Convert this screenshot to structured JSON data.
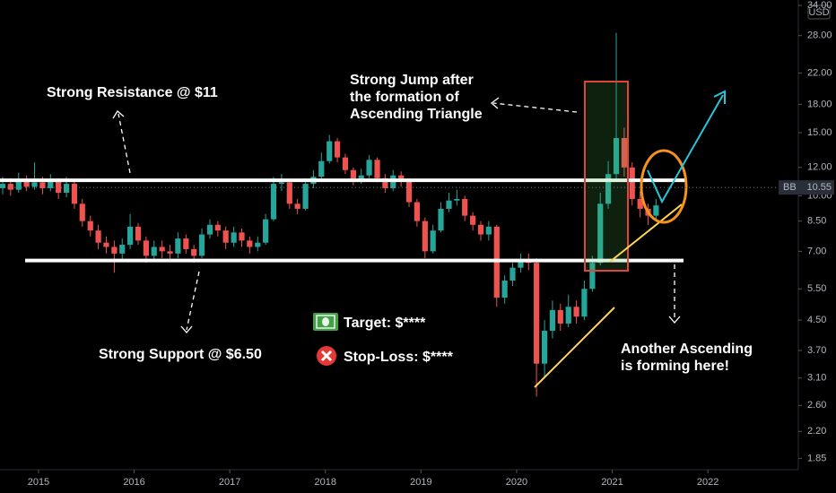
{
  "chart_data": {
    "type": "candlestick",
    "x": [
      2014.625,
      2014.708,
      2014.792,
      2014.875,
      2014.958,
      2015.042,
      2015.125,
      2015.208,
      2015.292,
      2015.375,
      2015.458,
      2015.542,
      2015.625,
      2015.708,
      2015.792,
      2015.875,
      2015.958,
      2016.042,
      2016.125,
      2016.208,
      2016.292,
      2016.375,
      2016.458,
      2016.542,
      2016.625,
      2016.708,
      2016.792,
      2016.875,
      2016.958,
      2017.042,
      2017.125,
      2017.208,
      2017.292,
      2017.375,
      2017.458,
      2017.542,
      2017.625,
      2017.708,
      2017.792,
      2017.875,
      2017.958,
      2018.042,
      2018.125,
      2018.208,
      2018.292,
      2018.375,
      2018.458,
      2018.542,
      2018.625,
      2018.708,
      2018.792,
      2018.875,
      2018.958,
      2019.042,
      2019.125,
      2019.208,
      2019.292,
      2019.375,
      2019.458,
      2019.542,
      2019.625,
      2019.708,
      2019.792,
      2019.875,
      2019.958,
      2020.042,
      2020.125,
      2020.208,
      2020.292,
      2020.375,
      2020.458,
      2020.542,
      2020.625,
      2020.708,
      2020.792,
      2020.875,
      2020.958,
      2021.042,
      2021.125,
      2021.208,
      2021.292,
      2021.375,
      2021.458
    ],
    "open": [
      10.5,
      10.8,
      10.4,
      11.0,
      10.6,
      10.9,
      10.5,
      11.0,
      10.2,
      10.8,
      9.5,
      8.5,
      8.0,
      7.4,
      7.2,
      6.9,
      7.3,
      8.2,
      7.5,
      6.8,
      7.2,
      7.0,
      6.9,
      7.6,
      7.1,
      6.8,
      7.8,
      8.3,
      8.0,
      7.4,
      7.9,
      7.5,
      7.2,
      7.4,
      8.6,
      10.8,
      10.9,
      9.5,
      9.2,
      10.8,
      11.3,
      12.5,
      14.2,
      12.8,
      11.8,
      11.0,
      11.4,
      12.6,
      11.2,
      10.5,
      11.4,
      11.0,
      9.6,
      8.5,
      7.0,
      8.0,
      9.2,
      9.7,
      9.8,
      8.8,
      8.3,
      7.8,
      8.2,
      5.2,
      5.8,
      6.3,
      6.6,
      6.5,
      3.4,
      4.2,
      4.8,
      4.4,
      4.9,
      4.6,
      5.5,
      6.5,
      9.5,
      11.5,
      14.5,
      12.0,
      9.8,
      9.2,
      8.8
    ],
    "high": [
      11.3,
      11.2,
      11.6,
      11.4,
      12.4,
      11.3,
      11.5,
      11.2,
      11.3,
      11.0,
      9.8,
      8.8,
      8.3,
      7.7,
      7.5,
      7.6,
      8.9,
      8.4,
      7.7,
      7.5,
      7.5,
      7.3,
      7.9,
      7.8,
      7.3,
      8.1,
      8.6,
      8.5,
      8.2,
      8.2,
      8.1,
      7.7,
      7.7,
      8.9,
      11.3,
      11.5,
      11.0,
      9.8,
      11.2,
      11.8,
      13.2,
      14.8,
      14.5,
      13.1,
      12.0,
      11.9,
      13.0,
      12.8,
      11.5,
      11.8,
      11.7,
      11.2,
      9.8,
      8.7,
      8.3,
      9.6,
      10.2,
      10.4,
      10.0,
      9.0,
      8.5,
      8.5,
      8.3,
      6.0,
      6.5,
      6.9,
      6.9,
      6.7,
      4.5,
      5.1,
      5.0,
      5.3,
      5.1,
      5.8,
      6.8,
      10.2,
      12.5,
      28.5,
      15.5,
      12.4,
      10.3,
      9.5,
      9.8
    ],
    "low": [
      10.1,
      10.0,
      10.2,
      10.3,
      10.4,
      10.1,
      10.3,
      9.8,
      9.9,
      9.2,
      8.2,
      7.7,
      7.1,
      6.9,
      6.1,
      6.6,
      7.1,
      7.3,
      6.5,
      6.6,
      6.7,
      6.6,
      6.7,
      6.9,
      6.5,
      6.7,
      7.6,
      7.7,
      7.1,
      7.2,
      7.2,
      6.9,
      7.0,
      7.3,
      8.5,
      10.3,
      9.2,
      8.9,
      9.1,
      10.5,
      11.1,
      12.3,
      12.4,
      11.5,
      10.7,
      10.8,
      11.2,
      10.9,
      10.2,
      10.3,
      10.6,
      9.3,
      8.2,
      6.7,
      6.9,
      7.9,
      9.0,
      9.4,
      8.5,
      8.0,
      7.5,
      7.5,
      4.9,
      5.0,
      5.6,
      6.1,
      6.2,
      2.75,
      3.1,
      4.0,
      4.2,
      4.3,
      4.4,
      4.5,
      5.4,
      6.4,
      9.2,
      11.0,
      11.3,
      9.4,
      8.7,
      8.3,
      8.6
    ],
    "close": [
      10.8,
      10.4,
      11.0,
      10.6,
      10.9,
      10.5,
      11.0,
      10.2,
      10.8,
      9.5,
      8.5,
      8.0,
      7.4,
      7.2,
      6.9,
      7.3,
      8.2,
      7.5,
      6.8,
      7.2,
      7.0,
      6.9,
      7.6,
      7.1,
      6.8,
      7.8,
      8.3,
      8.0,
      7.4,
      7.9,
      7.5,
      7.2,
      7.4,
      8.6,
      10.8,
      10.9,
      9.5,
      9.2,
      10.8,
      11.3,
      12.5,
      14.2,
      12.8,
      11.8,
      11.0,
      11.4,
      12.6,
      11.2,
      10.5,
      11.4,
      11.0,
      9.6,
      8.5,
      7.0,
      8.0,
      9.2,
      9.7,
      9.8,
      8.8,
      8.3,
      7.8,
      8.2,
      5.2,
      5.8,
      6.3,
      6.6,
      6.5,
      3.4,
      4.2,
      4.8,
      4.4,
      4.9,
      4.6,
      5.5,
      6.5,
      9.5,
      11.5,
      14.5,
      12.0,
      9.8,
      9.2,
      8.8,
      9.4
    ],
    "up_color": "#26a69a",
    "down_color": "#ef5350",
    "xlim": [
      2014.597,
      2022.946
    ],
    "xticks": [
      2015,
      2016,
      2017,
      2018,
      2019,
      2020,
      2021,
      2022
    ],
    "ylim": [
      1.72,
      35.2
    ],
    "log_scale": true,
    "grid": false,
    "yticks": [
      {
        "value": 1.85,
        "label": "1.85"
      },
      {
        "value": 2.2,
        "label": "2.20"
      },
      {
        "value": 2.6,
        "label": "2.60"
      },
      {
        "value": 3.1,
        "label": "3.10"
      },
      {
        "value": 3.7,
        "label": "3.70"
      },
      {
        "value": 4.5,
        "label": "4.50"
      },
      {
        "value": 5.5,
        "label": "5.50"
      },
      {
        "value": 7,
        "label": "7.00"
      },
      {
        "value": 8.5,
        "label": "8.50"
      },
      {
        "value": 10,
        "label": "10.00"
      },
      {
        "value": 12,
        "label": "12.00"
      },
      {
        "value": 15,
        "label": "15.00"
      },
      {
        "value": 18,
        "label": "18.00"
      },
      {
        "value": 22,
        "label": "22.00"
      },
      {
        "value": 28,
        "label": "28.00"
      },
      {
        "value": 34,
        "label": "34.00"
      }
    ],
    "currency": "USD",
    "levels": [
      11.05,
      6.6
    ],
    "level_color": "#ffffff",
    "last_price": {
      "symbol": "BB",
      "value": 10.55
    },
    "annotations": {
      "resistance": "Strong Resistance @ $11",
      "jump": [
        "Strong Jump after",
        "the formation of",
        "Ascending Triangle"
      ],
      "support": "Strong Support @ $6.50",
      "target": "Target: $****",
      "stop_loss": "Stop-Loss: $****",
      "ascending": [
        "Another Ascending",
        "is forming here!"
      ]
    }
  }
}
